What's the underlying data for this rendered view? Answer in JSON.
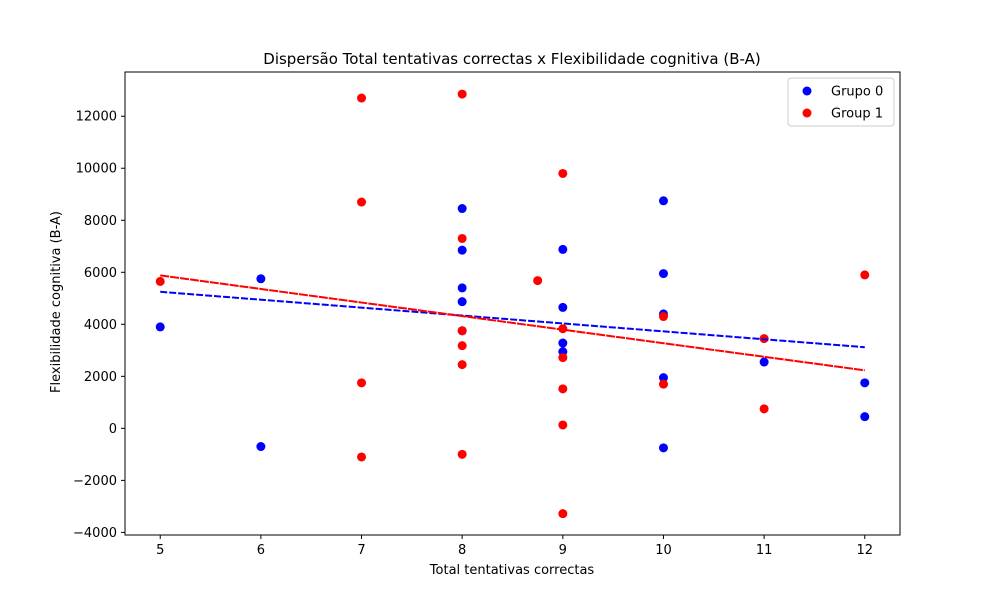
{
  "chart_data": {
    "type": "scatter",
    "title": "Dispersão Total tentativas correctas x Flexibilidade cognitiva (B-A)",
    "xlabel": "Total tentativas correctas",
    "ylabel": "Flexibilidade cognitiva (B-A)",
    "xlim": [
      4.65,
      12.35
    ],
    "ylim": [
      -4100,
      13700
    ],
    "xticks": [
      5,
      6,
      7,
      8,
      9,
      10,
      11,
      12
    ],
    "yticks": [
      -4000,
      -2000,
      0,
      2000,
      4000,
      6000,
      8000,
      10000,
      12000
    ],
    "ytick_labels": [
      "−4000",
      "−2000",
      "0",
      "2000",
      "4000",
      "6000",
      "8000",
      "10000",
      "12000"
    ],
    "grid": false,
    "legend_position": "top-right",
    "series": [
      {
        "name": "Grupo 0",
        "color": "#0000ff",
        "points": [
          [
            5,
            3900
          ],
          [
            6,
            5750
          ],
          [
            6,
            -700
          ],
          [
            8,
            8450
          ],
          [
            8,
            6850
          ],
          [
            8,
            5400
          ],
          [
            8,
            4870
          ],
          [
            8,
            3750
          ],
          [
            9,
            6880
          ],
          [
            9,
            4650
          ],
          [
            9,
            3280
          ],
          [
            9,
            2950
          ],
          [
            10,
            8750
          ],
          [
            10,
            5950
          ],
          [
            10,
            4400
          ],
          [
            10,
            1950
          ],
          [
            10,
            -750
          ],
          [
            11,
            2550
          ],
          [
            12,
            1750
          ],
          [
            12,
            450
          ]
        ],
        "fit": {
          "x": [
            5,
            12
          ],
          "y": [
            5250,
            3120
          ]
        }
      },
      {
        "name": "Group 1",
        "color": "#ff0000",
        "points": [
          [
            5,
            5650
          ],
          [
            7,
            12700
          ],
          [
            7,
            8700
          ],
          [
            7,
            1750
          ],
          [
            7,
            -1100
          ],
          [
            8,
            12850
          ],
          [
            8,
            7300
          ],
          [
            8,
            3750
          ],
          [
            8,
            3180
          ],
          [
            8,
            2450
          ],
          [
            8,
            -1000
          ],
          [
            8.75,
            5680
          ],
          [
            9,
            9800
          ],
          [
            9,
            3830
          ],
          [
            9,
            2720
          ],
          [
            9,
            1520
          ],
          [
            9,
            130
          ],
          [
            9,
            -3280
          ],
          [
            10,
            4300
          ],
          [
            10,
            1700
          ],
          [
            11,
            3450
          ],
          [
            11,
            750
          ],
          [
            12,
            5900
          ]
        ],
        "fit": {
          "x": [
            5,
            12
          ],
          "y": [
            5880,
            2230
          ]
        }
      }
    ]
  }
}
